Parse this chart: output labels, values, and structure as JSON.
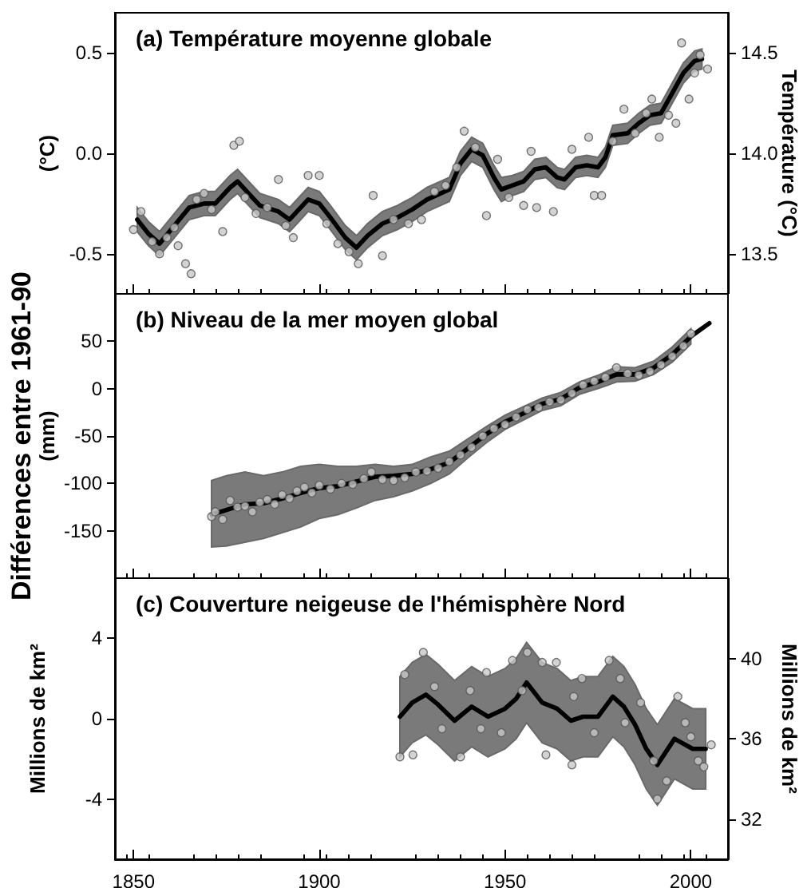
{
  "chart_data": [
    {
      "type": "line",
      "title": "(a) Température moyenne globale",
      "ylabel": "(°C)",
      "y2label": "Température (°C)",
      "xlim": [
        1845,
        2010
      ],
      "xticks": [
        1850,
        1900,
        1950,
        2000
      ],
      "ylim": [
        -0.7,
        0.7
      ],
      "yticks": [
        -0.5,
        {
          "value": 0,
          "label": "0.0"
        },
        0.5
      ],
      "y2lim": [
        13.3,
        14.7
      ],
      "y2ticks": [
        13.5,
        {
          "value": 14,
          "label": "14.0"
        },
        14.5
      ],
      "tick_labels": "y",
      "grid": false,
      "series": [
        {
          "type": "line",
          "color": "#000000",
          "marker": "none",
          "line_style": "solid",
          "x": [
            1851,
            1854,
            1857,
            1861,
            1865,
            1869,
            1872,
            1876,
            1878,
            1881,
            1884,
            1889,
            1892,
            1895,
            1897,
            1900,
            1903,
            1907,
            1910,
            1913,
            1917,
            1921,
            1925,
            1929,
            1935,
            1938,
            1941,
            1944,
            1947,
            1949,
            1952,
            1955,
            1958,
            1961,
            1964,
            1966,
            1969,
            1972,
            1975,
            1977,
            1979,
            1983,
            1986,
            1989,
            1992,
            1995,
            1998,
            2001,
            2003
          ],
          "values": [
            -0.33,
            -0.4,
            -0.45,
            -0.36,
            -0.27,
            -0.25,
            -0.25,
            -0.17,
            -0.14,
            -0.2,
            -0.26,
            -0.29,
            -0.33,
            -0.27,
            -0.23,
            -0.25,
            -0.32,
            -0.42,
            -0.47,
            -0.41,
            -0.35,
            -0.32,
            -0.28,
            -0.23,
            -0.18,
            -0.05,
            0.02,
            -0.01,
            -0.12,
            -0.18,
            -0.16,
            -0.14,
            -0.08,
            -0.07,
            -0.12,
            -0.13,
            -0.07,
            -0.06,
            -0.07,
            -0.02,
            0.09,
            0.1,
            0.15,
            0.19,
            0.2,
            0.3,
            0.4,
            0.46,
            0.47
          ],
          "lower": [
            -0.39,
            -0.46,
            -0.51,
            -0.42,
            -0.33,
            -0.31,
            -0.31,
            -0.23,
            -0.2,
            -0.26,
            -0.32,
            -0.35,
            -0.39,
            -0.33,
            -0.29,
            -0.31,
            -0.38,
            -0.48,
            -0.53,
            -0.47,
            -0.41,
            -0.38,
            -0.34,
            -0.29,
            -0.24,
            -0.11,
            -0.04,
            -0.07,
            -0.18,
            -0.24,
            -0.21,
            -0.19,
            -0.13,
            -0.12,
            -0.17,
            -0.18,
            -0.12,
            -0.11,
            -0.12,
            -0.07,
            0.04,
            0.05,
            0.1,
            0.14,
            0.15,
            0.25,
            0.35,
            0.41,
            0.42
          ],
          "upper": [
            -0.27,
            -0.34,
            -0.39,
            -0.3,
            -0.21,
            -0.19,
            -0.19,
            -0.11,
            -0.08,
            -0.14,
            -0.2,
            -0.23,
            -0.27,
            -0.21,
            -0.17,
            -0.19,
            -0.26,
            -0.36,
            -0.41,
            -0.35,
            -0.29,
            -0.26,
            -0.22,
            -0.17,
            -0.12,
            0.01,
            0.08,
            0.05,
            -0.06,
            -0.12,
            -0.11,
            -0.09,
            -0.03,
            -0.02,
            -0.07,
            -0.08,
            -0.02,
            -0.01,
            -0.02,
            0.03,
            0.14,
            0.15,
            0.2,
            0.24,
            0.25,
            0.35,
            0.45,
            0.51,
            0.52
          ]
        },
        {
          "type": "scatter",
          "color": "#c8c8c8",
          "marker": "circle",
          "x": [
            1850,
            1852,
            1855,
            1857,
            1859,
            1861,
            1862,
            1864,
            1865.5,
            1867,
            1869,
            1871,
            1874,
            1877,
            1878.5,
            1880,
            1883,
            1886,
            1889,
            1891,
            1893,
            1897,
            1900,
            1902,
            1905,
            1908,
            1910.5,
            1914.5,
            1917,
            1920,
            1924,
            1927.5,
            1931,
            1934,
            1937,
            1939,
            1942,
            1945,
            1948,
            1951,
            1955,
            1957,
            1958.5,
            1963,
            1968,
            1972.5,
            1974,
            1976,
            1979,
            1982,
            1985,
            1988,
            1989.5,
            1991.5,
            1994,
            1996,
            1997.5,
            1999.5,
            2001,
            2002.5,
            2004.5
          ],
          "values": [
            -0.38,
            -0.29,
            -0.44,
            -0.5,
            -0.42,
            -0.37,
            -0.46,
            -0.55,
            -0.6,
            -0.23,
            -0.2,
            -0.28,
            -0.39,
            0.04,
            0.06,
            -0.22,
            -0.3,
            -0.27,
            -0.13,
            -0.36,
            -0.42,
            -0.11,
            -0.11,
            -0.35,
            -0.45,
            -0.49,
            -0.55,
            -0.21,
            -0.51,
            -0.33,
            -0.35,
            -0.33,
            -0.19,
            -0.16,
            -0.07,
            0.11,
            0.03,
            -0.31,
            -0.03,
            -0.22,
            -0.26,
            0.01,
            -0.27,
            -0.29,
            0.02,
            0.08,
            -0.21,
            -0.21,
            0.06,
            0.22,
            0.1,
            0.2,
            0.27,
            0.08,
            0.19,
            0.15,
            0.55,
            0.27,
            0.4,
            0.49,
            0.42
          ]
        }
      ]
    },
    {
      "type": "line",
      "title": "(b) Niveau de la mer moyen global",
      "ylabel": "(mm)",
      "annotations": [
        "Différences entre 1961-90"
      ],
      "xlim": [
        1845,
        2010
      ],
      "xticks": [
        1850,
        1900,
        1950,
        2000
      ],
      "ylim": [
        -200,
        100
      ],
      "yticks": [
        -150,
        -100,
        -50,
        0,
        50
      ],
      "tick_labels": "y",
      "grid": false,
      "series": [
        {
          "type": "line",
          "color": "#000000",
          "marker": "none",
          "line_style": "solid",
          "x": [
            1871,
            1875,
            1880,
            1885,
            1890,
            1895,
            1900,
            1905,
            1910,
            1915,
            1920,
            1925,
            1930,
            1935,
            1940,
            1945,
            1950,
            1955,
            1960,
            1965,
            1970,
            1975,
            1980,
            1985,
            1990,
            1995,
            2000,
            2005
          ],
          "values": [
            -133,
            -128,
            -122,
            -121,
            -116,
            -110,
            -105,
            -103,
            -98,
            -93,
            -92,
            -90,
            -85,
            -78,
            -63,
            -48,
            -35,
            -26,
            -16,
            -11,
            1,
            7,
            15,
            15,
            22,
            36,
            55,
            69
          ],
          "lower": [
            -167,
            -166,
            -162,
            -158,
            -152,
            -146,
            -137,
            -133,
            -126,
            -118,
            -114,
            -108,
            -100,
            -90,
            -73,
            -57,
            -43,
            -33,
            -23,
            -18,
            -6,
            0,
            7,
            8,
            15,
            28,
            47,
            null
          ],
          "upper": [
            -97,
            -92,
            -88,
            -92,
            -88,
            -82,
            -80,
            -82,
            -82,
            -80,
            -82,
            -80,
            -72,
            -66,
            -53,
            -40,
            -28,
            -19,
            -10,
            -4,
            7,
            14,
            23,
            22,
            29,
            44,
            63,
            null
          ]
        },
        {
          "type": "scatter",
          "color": "#c8c8c8",
          "marker": "circle",
          "x": [
            1871,
            1872,
            1874,
            1876,
            1878,
            1880,
            1882,
            1884,
            1886,
            1888,
            1890,
            1892,
            1894,
            1896,
            1898,
            1900,
            1903,
            1906,
            1909,
            1912,
            1914,
            1917,
            1920,
            1923,
            1926,
            1929,
            1932,
            1935,
            1938,
            1941,
            1944,
            1947,
            1950,
            1953,
            1956,
            1959,
            1962,
            1965,
            1968,
            1971,
            1974,
            1977,
            1980,
            1983,
            1986,
            1989,
            1992,
            1995,
            1998,
            2000
          ],
          "values": [
            -135,
            -130,
            -138,
            -118,
            -125,
            -124,
            -130,
            -120,
            -117,
            -122,
            -112,
            -116,
            -108,
            -104,
            -110,
            -102,
            -106,
            -100,
            -101,
            -95,
            -88,
            -96,
            -97,
            -94,
            -88,
            -87,
            -84,
            -77,
            -70,
            -62,
            -50,
            -42,
            -38,
            -30,
            -22,
            -20,
            -14,
            -12,
            -5,
            4,
            8,
            12,
            22,
            16,
            14,
            18,
            25,
            34,
            45,
            58
          ]
        }
      ]
    },
    {
      "type": "line",
      "title": "(c) Couverture neigeuse de l'hémisphère Nord",
      "ylabel": "Millions de km²",
      "y2label": "Millions de km²",
      "xlim": [
        1845,
        2010
      ],
      "xticks": [
        1850,
        1900,
        1950,
        2000
      ],
      "ylim": [
        -7,
        7
      ],
      "yticks": [
        -4,
        0,
        4
      ],
      "y2lim": [
        30,
        44
      ],
      "y2ticks": [
        32,
        36,
        40
      ],
      "grid": false,
      "series": [
        {
          "type": "line",
          "color": "#000000",
          "marker": "none",
          "line_style": "solid",
          "x": [
            1921.7,
            1925,
            1928.7,
            1932,
            1936.4,
            1941,
            1945.4,
            1950,
            1953,
            1955.8,
            1960,
            1964,
            1967.7,
            1971,
            1975,
            1979,
            1982,
            1985,
            1988,
            1991,
            1995.6,
            2000.5,
            2004
          ],
          "values": [
            0.1,
            0.8,
            1.2,
            0.7,
            -0.1,
            0.6,
            0.1,
            0.5,
            1.0,
            1.8,
            0.8,
            0.5,
            -0.1,
            0.1,
            0.1,
            1.1,
            0.6,
            -0.3,
            -1.5,
            -2.3,
            -1.0,
            -1.5,
            -1.5
          ],
          "lower": [
            -1.9,
            -1.2,
            -0.8,
            -1.3,
            -2.1,
            -1.4,
            -1.9,
            -1.5,
            -1.0,
            -0.2,
            -1.2,
            -1.5,
            -2.1,
            -1.9,
            -1.9,
            -0.9,
            -1.4,
            -2.3,
            -3.5,
            -4.3,
            -3.0,
            -3.5,
            -3.5
          ],
          "upper": [
            2.1,
            2.8,
            3.2,
            2.7,
            1.9,
            2.6,
            2.1,
            2.5,
            3.0,
            3.8,
            2.8,
            2.5,
            1.9,
            2.1,
            2.1,
            3.1,
            2.6,
            1.7,
            0.5,
            -0.3,
            1.0,
            0.5,
            0.5
          ]
        },
        {
          "type": "scatter",
          "color": "#c8c8c8",
          "marker": "circle",
          "x": [
            1921.7,
            1923,
            1925.2,
            1928,
            1931,
            1933,
            1938,
            1940.6,
            1943.5,
            1945,
            1949,
            1952,
            1954.6,
            1956,
            1960,
            1961,
            1963.8,
            1968,
            1968.5,
            1970.7,
            1974,
            1978,
            1981,
            1982.3,
            1986.5,
            1990,
            1991,
            1993.5,
            1996.5,
            1998.5,
            2000,
            2002,
            2003.5,
            2005.5
          ],
          "values": [
            -1.9,
            2.2,
            -1.8,
            3.3,
            1.6,
            -0.5,
            -1.9,
            1.4,
            -0.5,
            2.3,
            -0.7,
            2.9,
            1.4,
            3.3,
            2.8,
            -1.8,
            2.8,
            -2.3,
            1.1,
            2.0,
            -0.7,
            2.9,
            2.0,
            -0.2,
            0.8,
            -2.1,
            -4.0,
            -3.1,
            1.1,
            -0.2,
            -0.9,
            -2.1,
            -2.4,
            -1.3
          ]
        }
      ]
    }
  ]
}
